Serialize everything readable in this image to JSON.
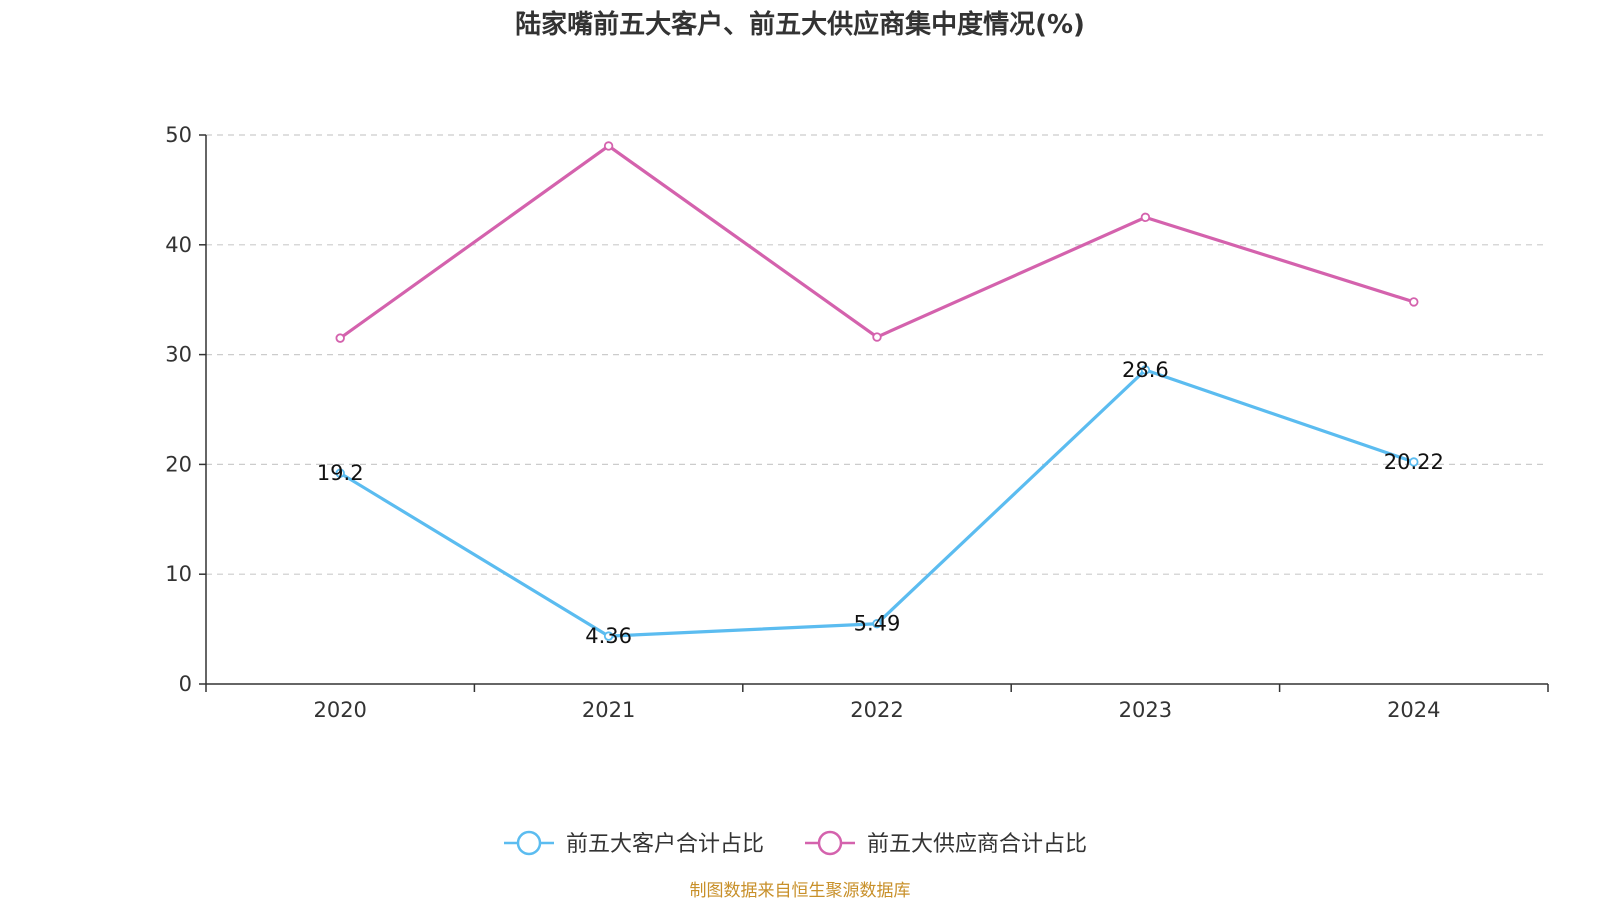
{
  "chart_data": {
    "type": "line",
    "title": "陆家嘴前五大客户、前五大供应商集中度情况(%)",
    "categories": [
      "2020",
      "2021",
      "2022",
      "2023",
      "2024"
    ],
    "ylim": [
      0,
      50
    ],
    "yticks": [
      0,
      10,
      20,
      30,
      40,
      50
    ],
    "grid": true,
    "legend_position": "bottom-center",
    "series": [
      {
        "name": "前五大客户合计占比",
        "color": "#5bbcf0",
        "values": [
          19.2,
          4.36,
          5.49,
          28.6,
          20.22
        ],
        "labels": [
          "19.2",
          "4.36",
          "5.49",
          "28.6",
          "20.22"
        ],
        "show_labels": true
      },
      {
        "name": "前五大供应商合计占比",
        "color": "#d462ad",
        "values": [
          31.5,
          49.0,
          31.6,
          42.5,
          34.8
        ],
        "show_labels": false
      }
    ],
    "source": "制图数据来自恒生聚源数据库",
    "source_color": "#c8902a"
  }
}
